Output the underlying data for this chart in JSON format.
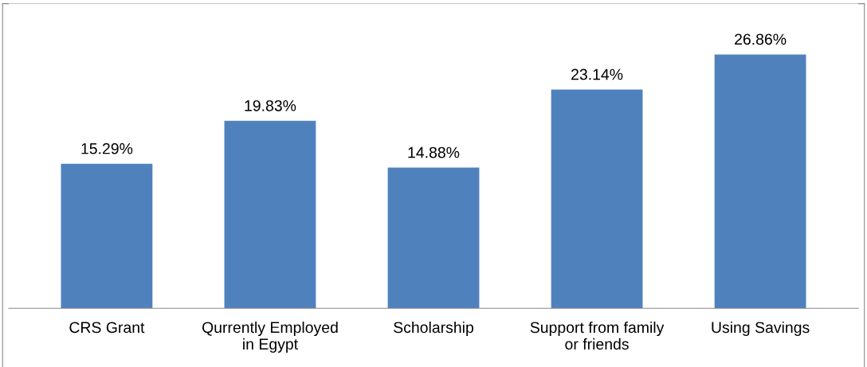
{
  "chart_data": {
    "type": "bar",
    "categories": [
      "CRS Grant",
      "Qurrently Employed\nin Egypt",
      "Scholarship",
      "Support from family\nor friends",
      "Using Savings"
    ],
    "values": [
      15.29,
      19.83,
      14.88,
      23.14,
      26.86
    ],
    "value_labels": [
      "15.29%",
      "19.83%",
      "14.88%",
      "23.14%",
      "26.86%"
    ],
    "color": "#4f81bd",
    "grid": false,
    "legend": false,
    "tick_labels": "x"
  }
}
